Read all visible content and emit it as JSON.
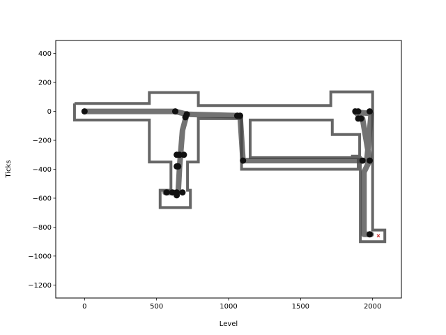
{
  "chart_data": {
    "type": "line",
    "title": "",
    "xlabel": "Level",
    "ylabel": "Ticks",
    "xlim": [
      -200,
      2200
    ],
    "ylim": [
      -1290,
      490
    ],
    "xticks": [
      0,
      500,
      1000,
      1500,
      2000
    ],
    "xtick_labels": [
      "0",
      "500",
      "1000",
      "1500",
      "2000"
    ],
    "yticks": [
      400,
      200,
      0,
      -200,
      -400,
      -600,
      -800,
      -1000,
      -1200
    ],
    "ytick_labels": [
      "400",
      "200",
      "0",
      "−200",
      "−400",
      "−600",
      "−800",
      "−1000",
      "−1200"
    ],
    "grid": false,
    "colors": {
      "walls": "#666666",
      "path": "#444444",
      "points": "#111111",
      "goal": "#cc3333"
    },
    "walls": [
      [
        [
          -70,
          55
        ],
        [
          450,
          55
        ],
        [
          450,
          130
        ],
        [
          790,
          130
        ],
        [
          790,
          40
        ],
        [
          1710,
          40
        ],
        [
          1710,
          135
        ],
        [
          2000,
          135
        ],
        [
          2000,
          -820
        ],
        [
          2085,
          -820
        ],
        [
          2085,
          -900
        ],
        [
          1915,
          -900
        ],
        [
          1915,
          -320
        ],
        [
          1860,
          -320
        ],
        [
          1860,
          -310
        ],
        [
          1910,
          -310
        ],
        [
          1910,
          -160
        ],
        [
          1720,
          -160
        ],
        [
          1720,
          -60
        ],
        [
          1150,
          -60
        ],
        [
          1150,
          -320
        ],
        [
          1900,
          -320
        ],
        [
          1900,
          -400
        ],
        [
          1090,
          -400
        ],
        [
          1090,
          -50
        ],
        [
          790,
          -50
        ],
        [
          790,
          -350
        ],
        [
          715,
          -350
        ],
        [
          715,
          -545
        ],
        [
          735,
          -545
        ],
        [
          735,
          -665
        ],
        [
          525,
          -665
        ],
        [
          525,
          -545
        ],
        [
          600,
          -545
        ],
        [
          600,
          -350
        ],
        [
          450,
          -350
        ],
        [
          450,
          -60
        ],
        [
          -70,
          -60
        ],
        [
          -70,
          55
        ]
      ]
    ],
    "path": [
      [
        0,
        0
      ],
      [
        630,
        0
      ],
      [
        710,
        -20
      ],
      [
        1080,
        -30
      ],
      [
        1100,
        -340
      ],
      [
        1960,
        -340
      ],
      [
        1990,
        -15
      ],
      [
        1880,
        -5
      ],
      [
        1930,
        -50
      ],
      [
        1980,
        -340
      ],
      [
        1940,
        -420
      ],
      [
        1940,
        -850
      ],
      [
        1990,
        -850
      ]
    ],
    "branch": [
      [
        710,
        -20
      ],
      [
        680,
        -130
      ],
      [
        660,
        -380
      ],
      [
        650,
        -560
      ],
      [
        560,
        -560
      ]
    ],
    "points": [
      [
        0,
        0
      ],
      [
        630,
        0
      ],
      [
        710,
        -20
      ],
      [
        700,
        -40
      ],
      [
        1060,
        -30
      ],
      [
        1080,
        -30
      ],
      [
        1100,
        -340
      ],
      [
        1880,
        0
      ],
      [
        1900,
        0
      ],
      [
        1980,
        0
      ],
      [
        1900,
        -50
      ],
      [
        1920,
        -50
      ],
      [
        1930,
        -340
      ],
      [
        1980,
        -340
      ],
      [
        640,
        -300
      ],
      [
        660,
        -300
      ],
      [
        690,
        -300
      ],
      [
        640,
        -380
      ],
      [
        650,
        -380
      ],
      [
        570,
        -560
      ],
      [
        610,
        -560
      ],
      [
        640,
        -560
      ],
      [
        640,
        -580
      ],
      [
        680,
        -560
      ],
      [
        1980,
        -850
      ]
    ],
    "goal": [
      2040,
      -860
    ]
  }
}
